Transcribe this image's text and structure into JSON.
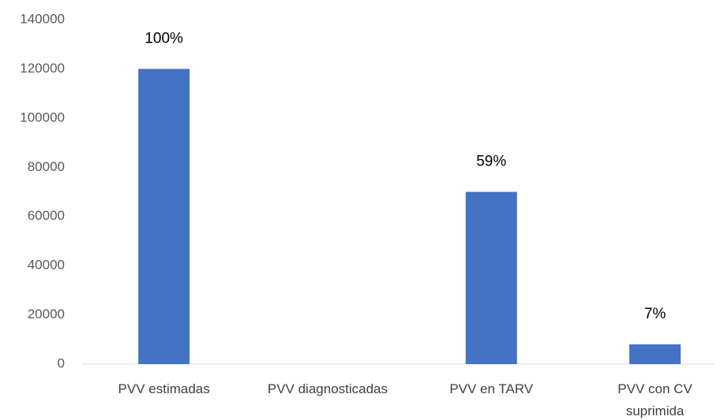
{
  "chart_data": {
    "type": "bar",
    "categories": [
      "PVV estimadas",
      "PVV diagnosticadas",
      "PVV en TARV",
      "PVV con CV\nsuprimida"
    ],
    "values": [
      120000,
      null,
      70000,
      8000
    ],
    "annotations": [
      "100%",
      null,
      "59%",
      "7%"
    ],
    "color": "#4472c4",
    "ylim": [
      0,
      140000
    ],
    "yticks": [
      0,
      20000,
      40000,
      60000,
      80000,
      100000,
      120000,
      140000
    ],
    "grid": false
  }
}
